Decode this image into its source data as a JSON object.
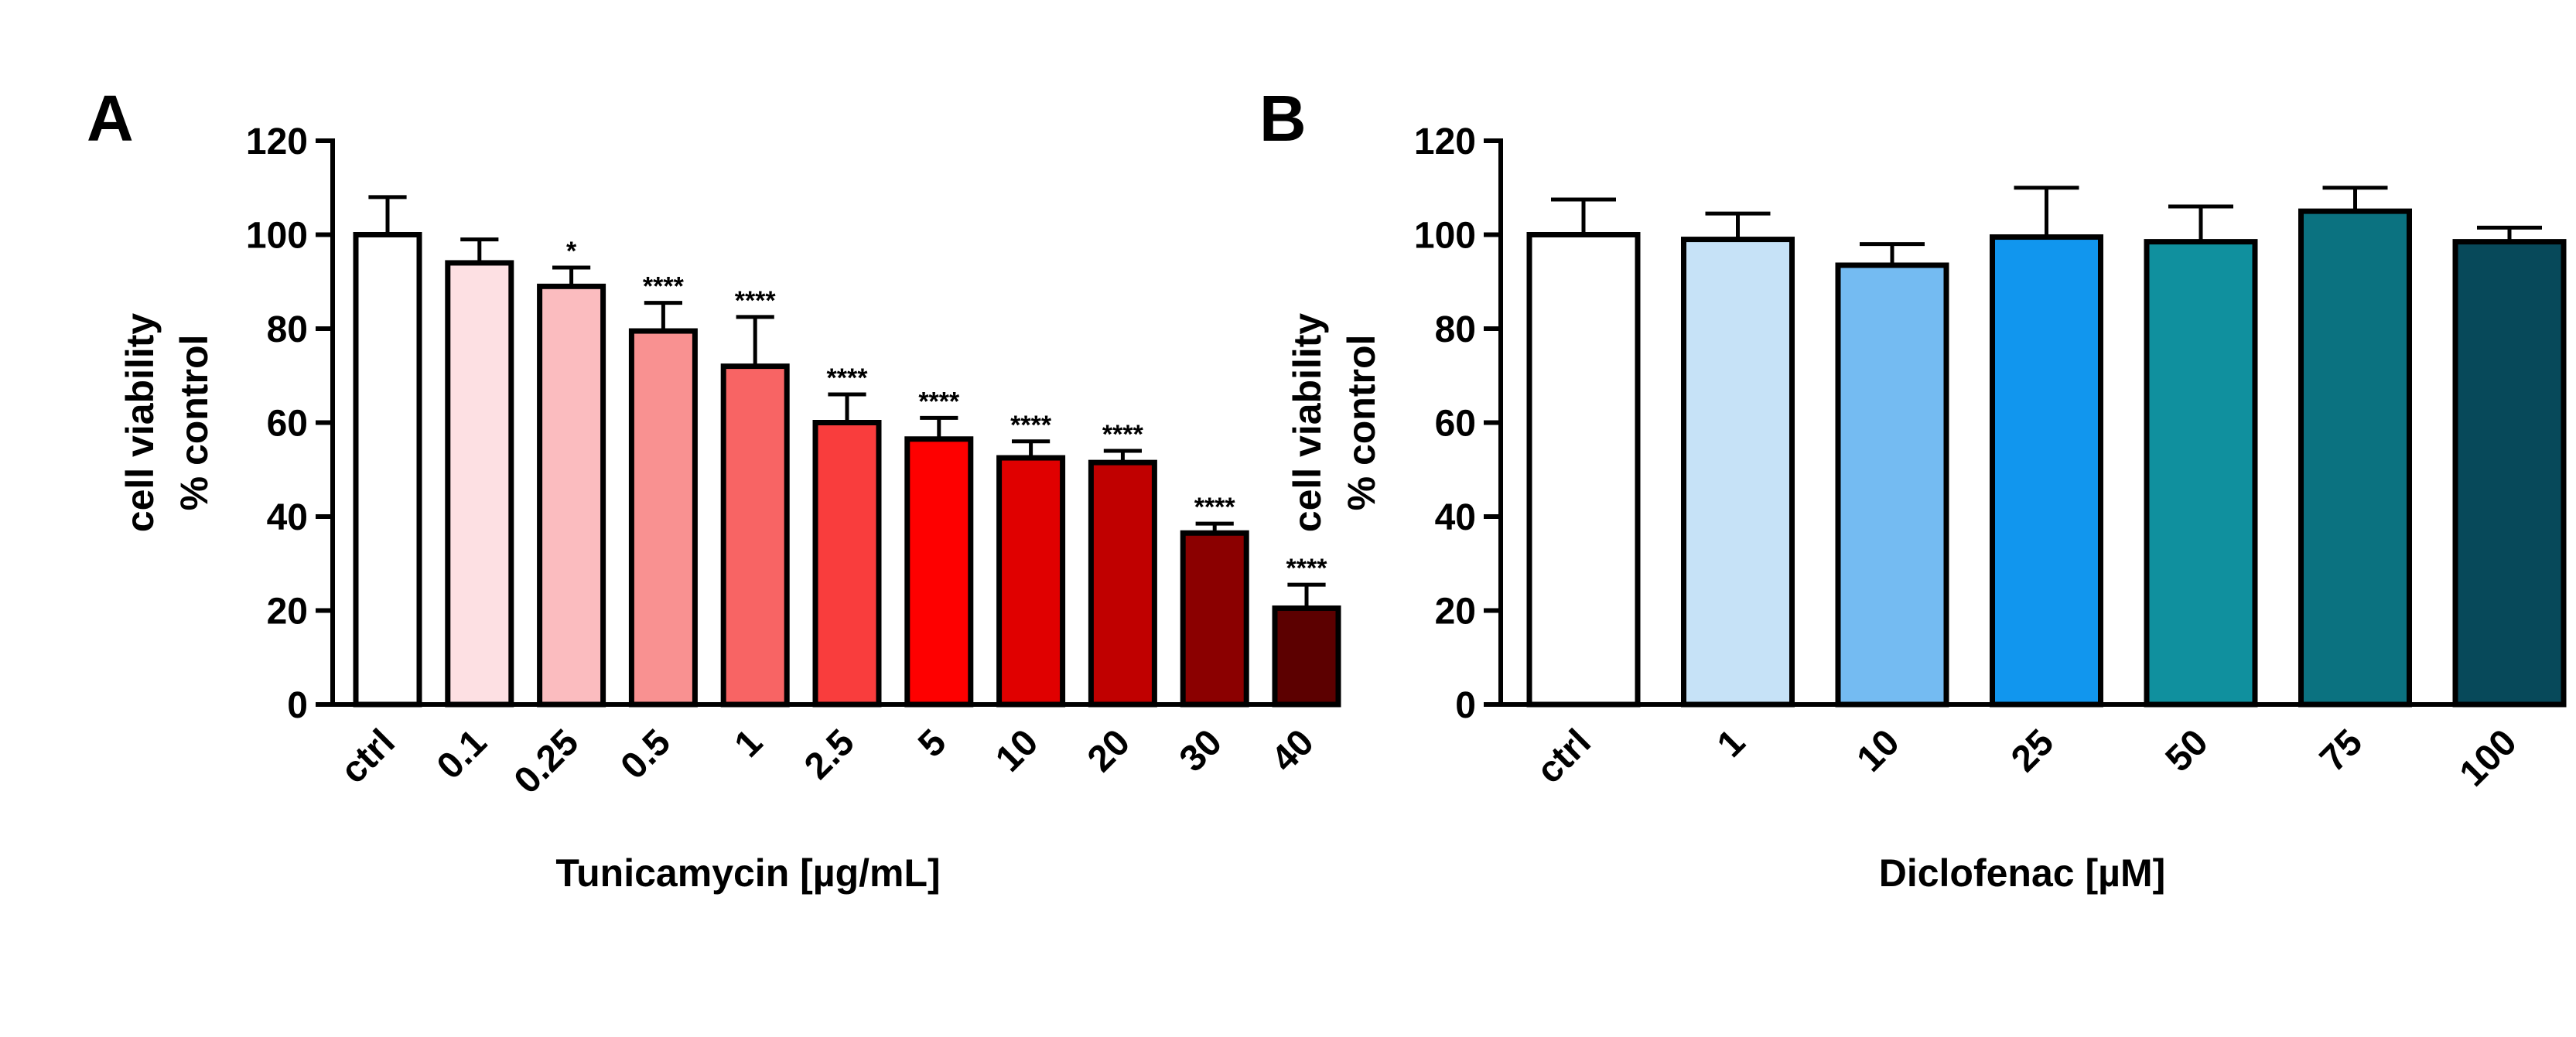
{
  "chart_data": [
    {
      "type": "bar",
      "panel_label": "A",
      "title": "",
      "xlabel": "Tunicamycin [µg/mL]",
      "ylabel_line1": "cell viability",
      "ylabel_line2": "% control",
      "ylim": [
        0,
        120
      ],
      "yticks": [
        0,
        20,
        40,
        60,
        80,
        100,
        120
      ],
      "grid": false,
      "categories": [
        "ctrl",
        "0.1",
        "0.25",
        "0.5",
        "1",
        "2.5",
        "5",
        "10",
        "20",
        "30",
        "40"
      ],
      "values": [
        100,
        94,
        89,
        79.5,
        72,
        60,
        56.5,
        52.5,
        51.5,
        36.5,
        20.5
      ],
      "errors": [
        8,
        5,
        4,
        6,
        10.5,
        6,
        4.5,
        3.5,
        2.5,
        2,
        5
      ],
      "significance": [
        "",
        "",
        "*",
        "****",
        "****",
        "****",
        "****",
        "****",
        "****",
        "****",
        "****"
      ],
      "colors": [
        "#ffffff",
        "#fde0e3",
        "#fbbcbf",
        "#f99191",
        "#f86464",
        "#f93d3d",
        "#fe0000",
        "#e00000",
        "#c00000",
        "#8b0000",
        "#5c0000"
      ]
    },
    {
      "type": "bar",
      "panel_label": "B",
      "title": "",
      "xlabel": "Diclofenac [µM]",
      "ylabel_line1": "cell viability",
      "ylabel_line2": "% control",
      "ylim": [
        0,
        120
      ],
      "yticks": [
        0,
        20,
        40,
        60,
        80,
        100,
        120
      ],
      "grid": false,
      "categories": [
        "ctrl",
        "1",
        "10",
        "25",
        "50",
        "75",
        "100"
      ],
      "values": [
        100,
        99,
        93.5,
        99.5,
        98.5,
        105,
        98.5
      ],
      "errors": [
        7.5,
        5.5,
        4.5,
        10.5,
        7.5,
        5,
        3
      ],
      "significance": [
        "",
        "",
        "",
        "",
        "",
        "",
        ""
      ],
      "colors": [
        "#ffffff",
        "#c6e2f7",
        "#74bbf2",
        "#1196ee",
        "#10909e",
        "#0b7280",
        "#07495a"
      ]
    }
  ]
}
